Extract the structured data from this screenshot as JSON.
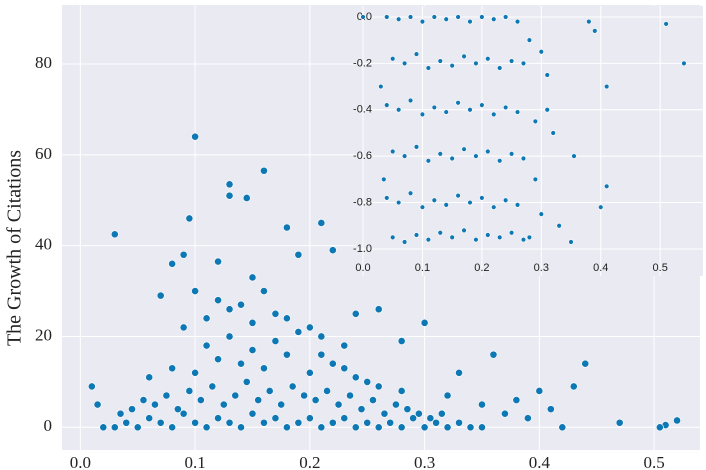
{
  "chart_data": [
    {
      "type": "scatter",
      "ylabel": "The Growth of Citations",
      "color": "#0e78b4",
      "grid": true,
      "xlim": [
        -0.016,
        0.54
      ],
      "ylim": [
        -5,
        93
      ],
      "xticks": [
        {
          "value": 0,
          "label": "0.0"
        },
        0.1,
        0.2,
        0.3,
        0.4,
        0.5
      ],
      "yticks": [
        0,
        20,
        40,
        60,
        80
      ],
      "x": [
        0.1,
        0.13,
        0.13,
        0.16,
        0.145,
        0.095,
        0.03,
        0.21,
        0.18,
        0.22,
        0.09,
        0.08,
        0.12,
        0.19,
        0.15,
        0.1,
        0.07,
        0.3,
        0.26,
        0.24,
        0.28,
        0.36,
        0.44,
        0.43,
        0.4,
        0.33,
        0.38,
        0.47,
        0.51,
        0.52,
        0.505,
        0.42,
        0.01,
        0.015,
        0.02,
        0.03,
        0.04,
        0.05,
        0.06,
        0.07,
        0.08,
        0.09,
        0.1,
        0.11,
        0.12,
        0.13,
        0.14,
        0.15,
        0.16,
        0.17,
        0.18,
        0.19,
        0.2,
        0.21,
        0.22,
        0.23,
        0.24,
        0.25,
        0.26,
        0.27,
        0.28,
        0.29,
        0.3,
        0.31,
        0.32,
        0.33,
        0.34,
        0.35,
        0.035,
        0.045,
        0.055,
        0.065,
        0.075,
        0.085,
        0.095,
        0.105,
        0.115,
        0.125,
        0.135,
        0.145,
        0.155,
        0.165,
        0.175,
        0.185,
        0.195,
        0.205,
        0.215,
        0.225,
        0.235,
        0.245,
        0.255,
        0.265,
        0.275,
        0.285,
        0.295,
        0.305,
        0.315,
        0.06,
        0.08,
        0.1,
        0.12,
        0.14,
        0.16,
        0.18,
        0.2,
        0.22,
        0.24,
        0.26,
        0.28,
        0.11,
        0.13,
        0.15,
        0.17,
        0.19,
        0.21,
        0.23,
        0.25,
        0.09,
        0.11,
        0.13,
        0.15,
        0.17,
        0.19,
        0.21,
        0.23,
        0.12,
        0.14,
        0.16,
        0.18,
        0.2,
        0.37,
        0.39,
        0.41,
        0.35,
        0.32
      ],
      "y": [
        64,
        53.5,
        51,
        56.5,
        50.5,
        46,
        42.5,
        45,
        44,
        39,
        38,
        36,
        36.5,
        38,
        33,
        30,
        29,
        23,
        26,
        25,
        19,
        16,
        14,
        9,
        8,
        12,
        6,
        1,
        0.5,
        1.5,
        0,
        0,
        9,
        5,
        0,
        0,
        1,
        0,
        2,
        1,
        0,
        3,
        1,
        0,
        2,
        1,
        0,
        3,
        1,
        2,
        0,
        1,
        2,
        0,
        1,
        2,
        0,
        1,
        0,
        1,
        0,
        2,
        0,
        1,
        0,
        1,
        0,
        0,
        3,
        4,
        6,
        5,
        7,
        4,
        8,
        6,
        9,
        5,
        7,
        10,
        6,
        8,
        5,
        9,
        7,
        6,
        8,
        5,
        7,
        4,
        6,
        3,
        5,
        4,
        3,
        2,
        3,
        11,
        13,
        12,
        15,
        14,
        13,
        16,
        12,
        14,
        11,
        9,
        8,
        18,
        20,
        17,
        19,
        21,
        16,
        13,
        10,
        22,
        24,
        26,
        23,
        25,
        21,
        20,
        18,
        28,
        27,
        30,
        24,
        22,
        3,
        2,
        4,
        5,
        7
      ]
    },
    {
      "type": "scatter",
      "color": "#0e78b4",
      "grid": true,
      "xlim": [
        0,
        0.567
      ],
      "ylim": [
        -1.039,
        0.03
      ],
      "xticks": [
        {
          "value": 0,
          "label": "0.0"
        },
        0.1,
        0.2,
        0.3,
        0.4,
        0.5
      ],
      "yticks": [
        {
          "value": 0,
          "label": "0.0"
        },
        -0.2,
        -0.4,
        -0.6,
        -0.8,
        {
          "value": -1,
          "label": "-1.0"
        }
      ],
      "x": [
        0,
        0.51,
        0.54,
        0.41,
        0.41,
        0.4,
        0.35,
        0.38,
        0.39,
        0.355,
        0.33,
        0.31,
        0.3,
        0.29,
        0.32,
        0.28,
        0.04,
        0.06,
        0.08,
        0.1,
        0.12,
        0.14,
        0.16,
        0.18,
        0.2,
        0.22,
        0.24,
        0.26,
        0.05,
        0.07,
        0.09,
        0.11,
        0.13,
        0.15,
        0.17,
        0.19,
        0.21,
        0.23,
        0.25,
        0.27,
        0.04,
        0.06,
        0.08,
        0.1,
        0.12,
        0.14,
        0.16,
        0.18,
        0.2,
        0.22,
        0.24,
        0.26,
        0.05,
        0.07,
        0.09,
        0.11,
        0.13,
        0.15,
        0.17,
        0.19,
        0.21,
        0.23,
        0.25,
        0.27,
        0.04,
        0.06,
        0.08,
        0.1,
        0.12,
        0.14,
        0.16,
        0.18,
        0.2,
        0.22,
        0.24,
        0.26,
        0.05,
        0.07,
        0.09,
        0.11,
        0.13,
        0.15,
        0.17,
        0.19,
        0.21,
        0.23,
        0.25,
        0.27,
        0.03,
        0.035,
        0.28,
        0.29,
        0.3,
        0.31
      ],
      "y": [
        0,
        -0.03,
        -0.2,
        -0.3,
        -0.73,
        -0.82,
        -0.97,
        -0.02,
        -0.06,
        -0.6,
        -0.9,
        -0.4,
        -0.15,
        -0.7,
        -0.5,
        -0.95,
        0,
        -0.01,
        0,
        -0.02,
        0,
        -0.01,
        0,
        -0.02,
        0,
        -0.01,
        0,
        -0.02,
        -0.18,
        -0.2,
        -0.16,
        -0.22,
        -0.19,
        -0.21,
        -0.17,
        -0.2,
        -0.18,
        -0.22,
        -0.19,
        -0.2,
        -0.38,
        -0.4,
        -0.36,
        -0.42,
        -0.39,
        -0.41,
        -0.37,
        -0.4,
        -0.38,
        -0.42,
        -0.39,
        -0.41,
        -0.58,
        -0.6,
        -0.56,
        -0.62,
        -0.59,
        -0.61,
        -0.57,
        -0.6,
        -0.58,
        -0.62,
        -0.59,
        -0.61,
        -0.78,
        -0.8,
        -0.76,
        -0.82,
        -0.79,
        -0.81,
        -0.77,
        -0.8,
        -0.78,
        -0.82,
        -0.79,
        -0.81,
        -0.95,
        -0.97,
        -0.94,
        -0.96,
        -0.93,
        -0.95,
        -0.92,
        -0.96,
        -0.94,
        -0.95,
        -0.93,
        -0.96,
        -0.3,
        -0.7,
        -0.1,
        -0.45,
        -0.85,
        -0.25
      ]
    }
  ]
}
